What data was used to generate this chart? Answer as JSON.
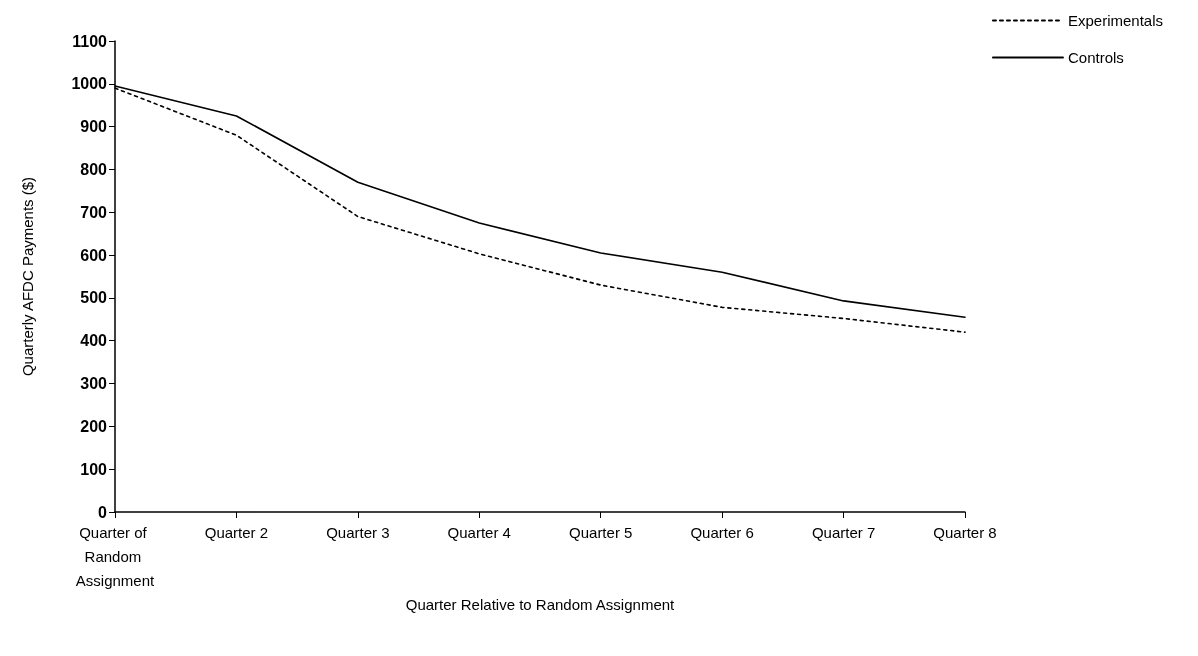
{
  "chart_data": {
    "type": "line",
    "xlabel": "Quarter Relative to Random Assignment",
    "ylabel": "Quarterly AFDC Payments ($)",
    "categories": [
      "Quarter of Random Assignment",
      "Quarter 2",
      "Quarter 3",
      "Quarter 4",
      "Quarter 5",
      "Quarter 6",
      "Quarter 7",
      "Quarter 8"
    ],
    "series": [
      {
        "name": "Experimentals",
        "color": "#000000",
        "line_style": "dotted",
        "values": [
          990,
          880,
          690,
          603,
          530,
          478,
          452,
          420
        ]
      },
      {
        "name": "Controls",
        "color": "#000000",
        "line_style": "solid",
        "values": [
          995,
          925,
          770,
          675,
          605,
          560,
          493,
          455
        ]
      }
    ],
    "ylim": [
      0,
      1100
    ],
    "yticks": [
      0,
      100,
      200,
      300,
      400,
      500,
      600,
      700,
      800,
      900,
      1000,
      1100
    ],
    "grid": false,
    "legend": "top right",
    "marker": "none"
  }
}
